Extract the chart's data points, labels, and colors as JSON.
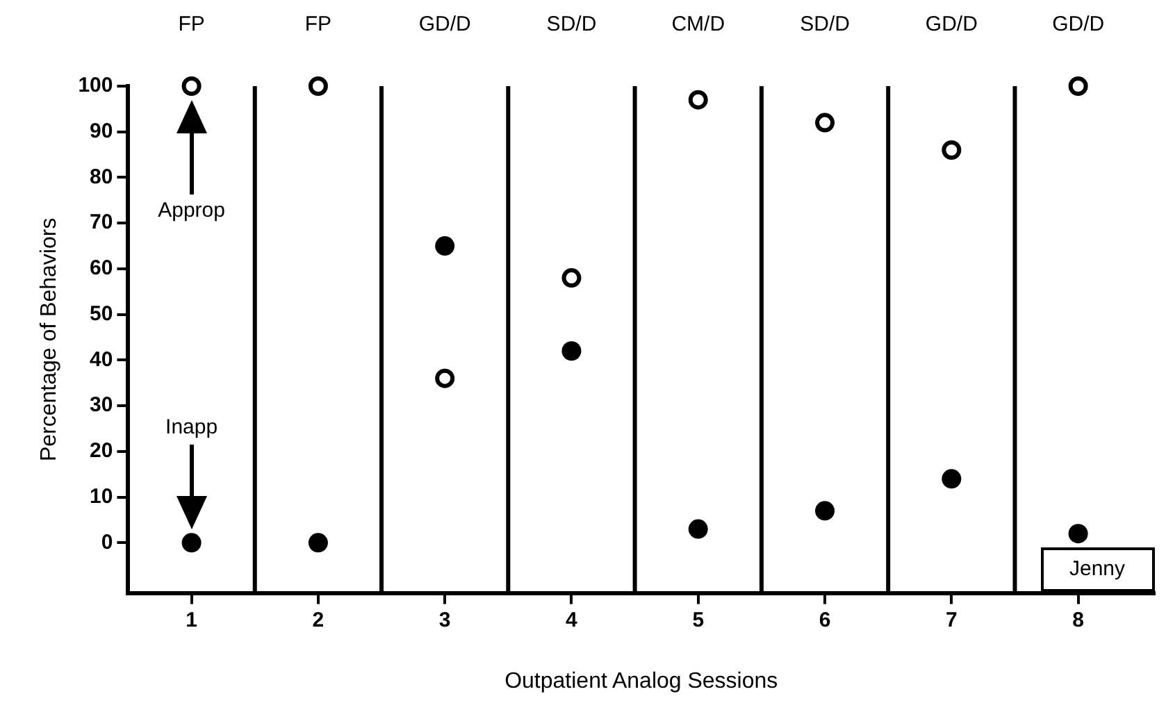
{
  "chart_data": {
    "type": "scatter",
    "xlabel": "Outpatient Analog Sessions",
    "ylabel": "Percentage of Behaviors",
    "x": [
      1,
      2,
      3,
      4,
      5,
      6,
      7,
      8
    ],
    "series": [
      {
        "color": "#000000",
        "marker": "circle",
        "values": [
          100,
          100,
          36,
          58,
          97,
          92,
          86,
          100
        ]
      },
      {
        "color": "#000000",
        "marker": "circle",
        "values": [
          0,
          0,
          65,
          42,
          3,
          7,
          14,
          2
        ]
      }
    ],
    "xlim": [
      0.5,
      8.6
    ],
    "xticks": [
      1,
      2,
      3,
      4,
      5,
      6,
      7,
      8
    ],
    "ylim": [
      -11,
      100
    ],
    "yticks": [
      0,
      10,
      20,
      30,
      40,
      50,
      60,
      70,
      80,
      90,
      100
    ],
    "ref_lines": [
      {
        "axis": "x",
        "value": 1.5,
        "color": "#000000"
      },
      {
        "axis": "x",
        "value": 2.5,
        "color": "#000000"
      },
      {
        "axis": "x",
        "value": 3.5,
        "color": "#000000"
      },
      {
        "axis": "x",
        "value": 4.5,
        "color": "#000000"
      },
      {
        "axis": "x",
        "value": 5.5,
        "color": "#000000"
      },
      {
        "axis": "x",
        "value": 6.5,
        "color": "#000000"
      },
      {
        "axis": "x",
        "value": 7.5,
        "color": "#000000"
      }
    ],
    "annotations": [
      "FP",
      "FP",
      "GD/D",
      "SD/D",
      "CM/D",
      "SD/D",
      "GD/D",
      "GD/D",
      "Approp",
      "Inapp",
      "Jenny"
    ],
    "grid": false,
    "legend": false
  }
}
